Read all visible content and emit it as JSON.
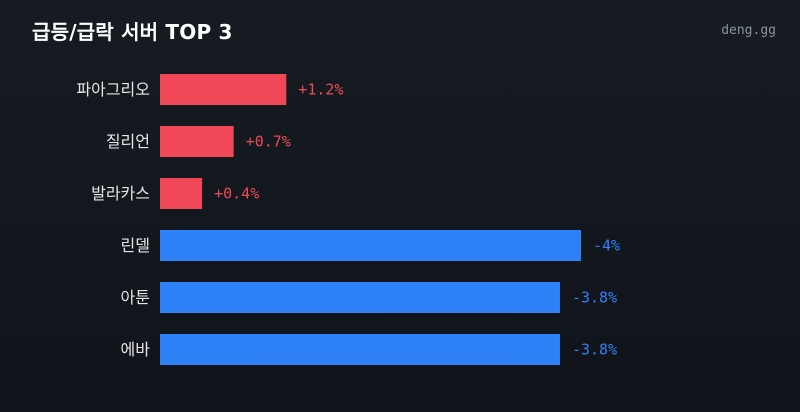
{
  "header": {
    "title": "급등/급락 서버 TOP 3",
    "brand": "deng.gg"
  },
  "colors": {
    "positive": "#f04856",
    "negative": "#2f81f7",
    "label": "#e6e6e6"
  },
  "chart_data": {
    "type": "bar",
    "orientation": "horizontal",
    "title": "급등/급락 서버 TOP 3",
    "categories": [
      "파아그리오",
      "질리언",
      "발라카스",
      "린델",
      "아툰",
      "에바"
    ],
    "values": [
      1.2,
      0.7,
      0.4,
      -4,
      -3.8,
      -3.8
    ],
    "value_labels": [
      "+1.2%",
      "+0.7%",
      "+0.4%",
      "-4%",
      "-3.8%",
      "-3.8%"
    ],
    "unit": "%",
    "grid": false,
    "legend": "none"
  }
}
